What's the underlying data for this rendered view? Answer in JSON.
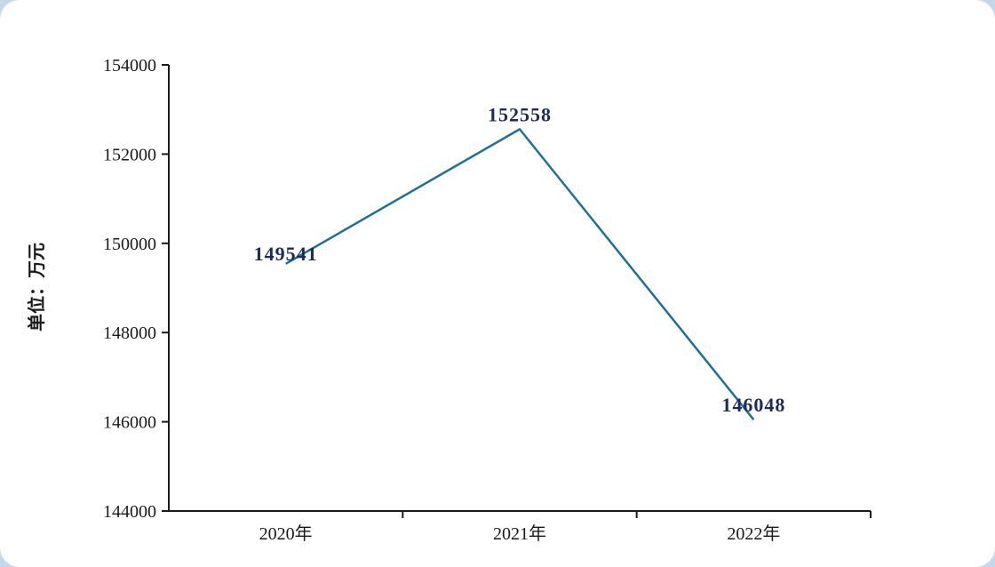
{
  "page": {
    "background_color": "#c7d7ea",
    "card_background_color": "#ffffff"
  },
  "chart_data": {
    "type": "line",
    "title": "",
    "xlabel": "",
    "ylabel": "单位：万元",
    "categories": [
      "2020年",
      "2021年",
      "2022年"
    ],
    "values": [
      149541,
      152558,
      146048
    ],
    "data_labels": [
      "149541",
      "152558",
      "146048"
    ],
    "ylim": [
      144000,
      154000
    ],
    "yticks": [
      144000,
      146000,
      148000,
      150000,
      152000,
      154000
    ],
    "grid": false,
    "legend_position": "none",
    "line_color": "#1f7097",
    "label_color": "#1e2a5a",
    "axis_color": "#1a1a1a",
    "tick_label_color": "#1a1a1a"
  }
}
